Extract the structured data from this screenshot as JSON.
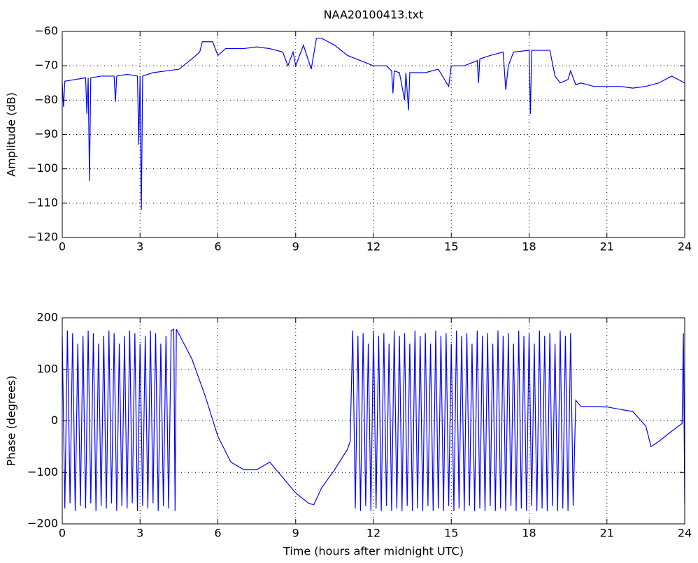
{
  "chart_data": [
    {
      "type": "line",
      "title": "NAA20100413.txt",
      "ylabel": "Amplitude (dB)",
      "color": "#0000ff",
      "grid": true,
      "xlim": [
        0,
        24
      ],
      "xticks": [
        0,
        3,
        6,
        9,
        12,
        15,
        18,
        21,
        24
      ],
      "ylim": [
        -120,
        -60
      ],
      "yticks": [
        {
          "value": -120,
          "label": "−120"
        },
        {
          "value": -110,
          "label": "−110"
        },
        {
          "value": -100,
          "label": "−100"
        },
        {
          "value": -90,
          "label": "−90"
        },
        {
          "value": -80,
          "label": "−80"
        },
        {
          "value": -70,
          "label": "−70"
        },
        {
          "value": -60,
          "label": "−60"
        }
      ],
      "x": [
        0,
        0.05,
        0.1,
        0.5,
        0.9,
        0.95,
        1,
        1.05,
        1.1,
        1.5,
        2,
        2.05,
        2.1,
        2.5,
        2.9,
        2.95,
        3,
        3.05,
        3.1,
        3.5,
        4,
        4.5,
        5,
        5.3,
        5.4,
        5.8,
        6,
        6.3,
        7,
        7.5,
        8,
        8.5,
        8.7,
        8.9,
        9,
        9.3,
        9.6,
        9.8,
        10,
        10.5,
        11,
        11.5,
        12,
        12.5,
        12.7,
        12.75,
        12.8,
        13,
        13.2,
        13.25,
        13.35,
        13.4,
        14,
        14.5,
        14.9,
        15,
        15.5,
        16,
        16.05,
        16.1,
        16.5,
        17,
        17.1,
        17.2,
        17.4,
        18,
        18.05,
        18.1,
        18.5,
        18.8,
        19,
        19.2,
        19.5,
        19.6,
        19.8,
        20,
        20.5,
        21,
        21.5,
        22,
        22.5,
        23,
        23.5,
        24
      ],
      "values": [
        -75,
        -82,
        -74.5,
        -74,
        -73.5,
        -84,
        -73.5,
        -103.5,
        -73.5,
        -73,
        -73,
        -80.5,
        -73,
        -72.5,
        -73,
        -93,
        -73,
        -112,
        -73,
        -72,
        -71.5,
        -71,
        -68,
        -66,
        -63,
        -63,
        -67,
        -65,
        -65,
        -64.5,
        -65,
        -66,
        -70,
        -66,
        -70,
        -64,
        -71,
        -62,
        -62,
        -64,
        -67,
        -68.5,
        -70,
        -70,
        -71.5,
        -78,
        -71.5,
        -72,
        -80,
        -72,
        -83,
        -72,
        -72,
        -71,
        -76,
        -70,
        -70,
        -68.5,
        -75,
        -68,
        -67,
        -66,
        -77,
        -70,
        -66,
        -65.5,
        -84,
        -65.5,
        -65.5,
        -65.5,
        -73,
        -75,
        -74,
        -71.5,
        -75.5,
        -75,
        -76,
        -76,
        -76,
        -76.5,
        -76,
        -75,
        -73,
        -75
      ]
    },
    {
      "type": "line",
      "xlabel": "Time (hours after midnight UTC)",
      "ylabel": "Phase (degrees)",
      "color": "#0000ff",
      "grid": true,
      "xlim": [
        0,
        24
      ],
      "xticks": [
        0,
        3,
        6,
        9,
        12,
        15,
        18,
        21,
        24
      ],
      "ylim": [
        -200,
        200
      ],
      "yticks": [
        {
          "value": -200,
          "label": "−200"
        },
        {
          "value": -100,
          "label": "−100"
        },
        0,
        100,
        200
      ],
      "x": [
        0,
        0.1,
        0.2,
        0.3,
        0.4,
        0.5,
        0.6,
        0.7,
        0.8,
        0.9,
        1,
        1.1,
        1.2,
        1.3,
        1.4,
        1.5,
        1.6,
        1.7,
        1.8,
        1.9,
        2,
        2.1,
        2.2,
        2.3,
        2.4,
        2.5,
        2.6,
        2.7,
        2.8,
        2.9,
        3,
        3.1,
        3.2,
        3.3,
        3.4,
        3.5,
        3.6,
        3.7,
        3.8,
        3.9,
        4,
        4.1,
        4.2,
        4.3,
        4.35,
        4.4,
        5,
        5.5,
        6,
        6.5,
        7,
        7.5,
        8,
        8.5,
        9,
        9.5,
        9.7,
        10,
        10.5,
        11,
        11.1,
        11.2,
        11.3,
        11.4,
        11.5,
        11.6,
        11.7,
        11.8,
        11.9,
        12,
        12.1,
        12.2,
        12.3,
        12.4,
        12.5,
        12.6,
        12.7,
        12.8,
        12.9,
        13,
        13.1,
        13.2,
        13.3,
        13.4,
        13.5,
        13.6,
        13.7,
        13.8,
        13.9,
        14,
        14.1,
        14.2,
        14.3,
        14.4,
        14.5,
        14.6,
        14.7,
        14.8,
        14.9,
        15,
        15.1,
        15.2,
        15.3,
        15.4,
        15.5,
        15.6,
        15.7,
        15.8,
        15.9,
        16,
        16.1,
        16.2,
        16.3,
        16.4,
        16.5,
        16.6,
        16.7,
        16.8,
        16.9,
        17,
        17.1,
        17.2,
        17.3,
        17.4,
        17.5,
        17.6,
        17.7,
        17.8,
        17.9,
        18,
        18.1,
        18.2,
        18.3,
        18.4,
        18.5,
        18.6,
        18.7,
        18.8,
        18.9,
        19,
        19.1,
        19.2,
        19.3,
        19.4,
        19.5,
        19.6,
        19.7,
        19.8,
        20,
        21,
        22,
        22.5,
        22.7,
        23,
        23.5,
        23.9,
        23.95,
        24
      ],
      "values": [
        165,
        -170,
        175,
        -160,
        170,
        -175,
        150,
        -165,
        165,
        -170,
        175,
        -160,
        170,
        -175,
        150,
        -165,
        165,
        -170,
        175,
        -160,
        170,
        -175,
        150,
        -165,
        165,
        -170,
        175,
        -160,
        170,
        -175,
        150,
        -165,
        165,
        -170,
        175,
        -160,
        170,
        -175,
        150,
        -165,
        165,
        -170,
        175,
        178,
        -175,
        178,
        120,
        50,
        -30,
        -80,
        -95,
        -95,
        -80,
        -110,
        -140,
        -160,
        -163,
        -130,
        -95,
        -55,
        -40,
        175,
        -170,
        165,
        -175,
        170,
        -165,
        150,
        -175,
        175,
        -170,
        165,
        -175,
        170,
        -165,
        150,
        -175,
        175,
        -170,
        165,
        -175,
        170,
        -165,
        150,
        -175,
        175,
        -170,
        165,
        -175,
        170,
        -165,
        150,
        -175,
        175,
        -170,
        165,
        -175,
        170,
        -165,
        150,
        -175,
        175,
        -170,
        165,
        -175,
        170,
        -165,
        150,
        -175,
        175,
        -170,
        165,
        -175,
        170,
        -165,
        150,
        -175,
        175,
        -170,
        165,
        -175,
        170,
        -165,
        150,
        -175,
        175,
        -170,
        165,
        -175,
        170,
        -165,
        150,
        -175,
        175,
        -170,
        165,
        -175,
        170,
        -165,
        150,
        -175,
        175,
        -170,
        165,
        -175,
        170,
        -165,
        40,
        28,
        27,
        18,
        -10,
        -50,
        -40,
        -20,
        -5,
        170,
        -160
      ]
    }
  ]
}
